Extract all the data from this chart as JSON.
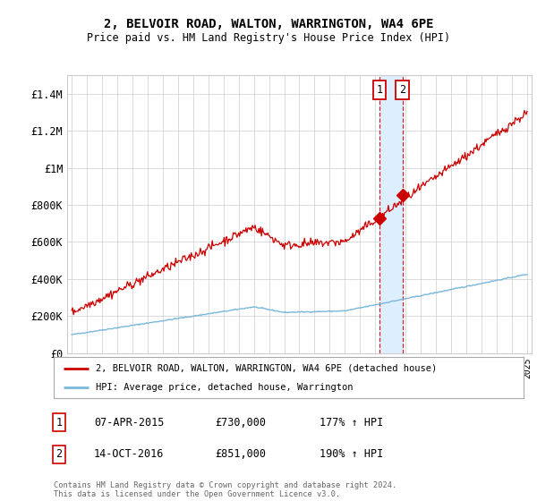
{
  "title": "2, BELVOIR ROAD, WALTON, WARRINGTON, WA4 6PE",
  "subtitle": "Price paid vs. HM Land Registry's House Price Index (HPI)",
  "legend_line1": "2, BELVOIR ROAD, WALTON, WARRINGTON, WA4 6PE (detached house)",
  "legend_line2": "HPI: Average price, detached house, Warrington",
  "annotation1_label": "1",
  "annotation1_date": "07-APR-2015",
  "annotation1_price": "£730,000",
  "annotation1_hpi": "177% ↑ HPI",
  "annotation1_year": 2015.27,
  "annotation1_value": 730000,
  "annotation2_label": "2",
  "annotation2_date": "14-OCT-2016",
  "annotation2_price": "£851,000",
  "annotation2_hpi": "190% ↑ HPI",
  "annotation2_year": 2016.79,
  "annotation2_value": 851000,
  "hpi_color": "#7ab8d9",
  "price_color": "#cc0000",
  "vline_color": "#cc0000",
  "vspan_color": "#ddeeff",
  "grid_color": "#cccccc",
  "ylim": [
    0,
    1500000
  ],
  "yticks": [
    0,
    200000,
    400000,
    600000,
    800000,
    1000000,
    1200000,
    1400000
  ],
  "ytick_labels": [
    "£0",
    "£200K",
    "£400K",
    "£600K",
    "£800K",
    "£1M",
    "£1.2M",
    "£1.4M"
  ],
  "footer": "Contains HM Land Registry data © Crown copyright and database right 2024.\nThis data is licensed under the Open Government Licence v3.0.",
  "background_color": "#ffffff",
  "xlim_left": 1994.7,
  "xlim_right": 2025.3
}
